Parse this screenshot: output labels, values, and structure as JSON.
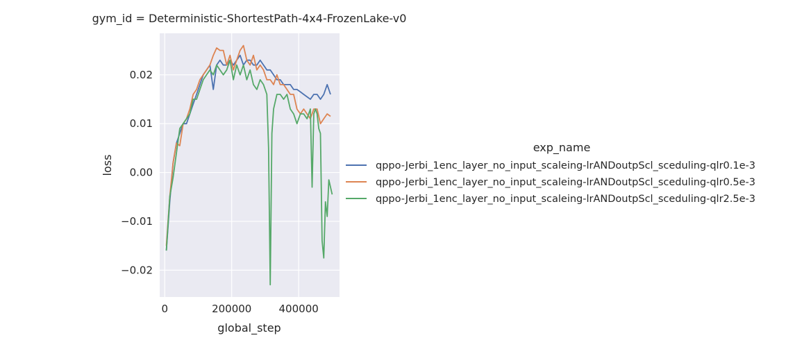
{
  "chart_data": {
    "type": "line",
    "title": "gym_id = Deterministic-ShortestPath-4x4-FrozenLake-v0",
    "xlabel": "global_step",
    "ylabel": "loss",
    "xlim": [
      -15000,
      522000
    ],
    "ylim": [
      -0.0255,
      0.0285
    ],
    "xticks": [
      0,
      200000,
      400000
    ],
    "xtick_labels": [
      "0",
      "200000",
      "400000"
    ],
    "yticks": [
      -0.02,
      -0.01,
      0.0,
      0.01,
      0.02
    ],
    "ytick_labels": [
      "−0.02",
      "−0.01",
      "0.00",
      "0.01",
      "0.02"
    ],
    "grid": true,
    "background": "#eaeaf2",
    "legend_title": "exp_name",
    "legend_position": "right",
    "series": [
      {
        "name": "qppo-Jerbi_1enc_layer_no_input_scaleing-lrANDoutpScl_sceduling-qlr0.1e-3",
        "color": "#4c72b0",
        "x": [
          5000,
          15000,
          25000,
          35000,
          45000,
          55000,
          65000,
          75000,
          85000,
          95000,
          105000,
          115000,
          125000,
          135000,
          145000,
          155000,
          165000,
          175000,
          185000,
          195000,
          205000,
          215000,
          225000,
          235000,
          245000,
          255000,
          265000,
          275000,
          285000,
          295000,
          305000,
          315000,
          325000,
          335000,
          345000,
          355000,
          365000,
          375000,
          385000,
          395000,
          405000,
          415000,
          425000,
          435000,
          445000,
          455000,
          465000,
          475000,
          485000,
          495000
        ],
        "y": [
          -0.016,
          -0.006,
          0.002,
          0.006,
          0.008,
          0.01,
          0.01,
          0.012,
          0.014,
          0.016,
          0.018,
          0.02,
          0.021,
          0.022,
          0.017,
          0.022,
          0.023,
          0.022,
          0.022,
          0.023,
          0.022,
          0.023,
          0.024,
          0.022,
          0.023,
          0.023,
          0.022,
          0.022,
          0.023,
          0.022,
          0.021,
          0.021,
          0.02,
          0.019,
          0.019,
          0.018,
          0.018,
          0.018,
          0.017,
          0.017,
          0.0165,
          0.016,
          0.0155,
          0.015,
          0.016,
          0.016,
          0.015,
          0.016,
          0.018,
          0.016
        ]
      },
      {
        "name": "qppo-Jerbi_1enc_layer_no_input_scaleing-lrANDoutpScl_sceduling-qlr0.5e-3",
        "color": "#dd8452",
        "x": [
          5000,
          15000,
          25000,
          35000,
          45000,
          55000,
          65000,
          75000,
          85000,
          95000,
          105000,
          115000,
          125000,
          135000,
          145000,
          155000,
          165000,
          175000,
          185000,
          195000,
          205000,
          215000,
          225000,
          235000,
          245000,
          255000,
          265000,
          275000,
          285000,
          295000,
          305000,
          315000,
          325000,
          335000,
          345000,
          355000,
          365000,
          375000,
          385000,
          395000,
          405000,
          415000,
          425000,
          435000,
          445000,
          455000,
          465000,
          475000,
          485000,
          495000
        ],
        "y": [
          -0.015,
          -0.005,
          0.002,
          0.006,
          0.0055,
          0.01,
          0.011,
          0.013,
          0.016,
          0.017,
          0.019,
          0.02,
          0.021,
          0.022,
          0.024,
          0.0255,
          0.025,
          0.025,
          0.022,
          0.024,
          0.021,
          0.023,
          0.025,
          0.026,
          0.023,
          0.022,
          0.024,
          0.021,
          0.022,
          0.021,
          0.019,
          0.019,
          0.018,
          0.02,
          0.018,
          0.018,
          0.017,
          0.016,
          0.016,
          0.013,
          0.012,
          0.013,
          0.012,
          0.011,
          0.013,
          0.013,
          0.01,
          0.011,
          0.012,
          0.0115
        ]
      },
      {
        "name": "qppo-Jerbi_1enc_layer_no_input_scaleing-lrANDoutpScl_sceduling-qlr2.5e-3",
        "color": "#55a868",
        "x": [
          5000,
          15000,
          25000,
          35000,
          45000,
          55000,
          65000,
          75000,
          85000,
          95000,
          105000,
          115000,
          125000,
          135000,
          145000,
          155000,
          165000,
          175000,
          185000,
          195000,
          205000,
          215000,
          225000,
          235000,
          245000,
          255000,
          265000,
          275000,
          285000,
          295000,
          305000,
          310000,
          315000,
          320000,
          325000,
          335000,
          345000,
          355000,
          365000,
          375000,
          385000,
          395000,
          405000,
          415000,
          425000,
          435000,
          440000,
          445000,
          450000,
          455000,
          460000,
          465000,
          470000,
          475000,
          480000,
          485000,
          490000,
          495000,
          500000
        ],
        "y": [
          -0.016,
          -0.005,
          -0.001,
          0.004,
          0.009,
          0.01,
          0.011,
          0.012,
          0.015,
          0.015,
          0.017,
          0.019,
          0.02,
          0.021,
          0.02,
          0.022,
          0.021,
          0.02,
          0.021,
          0.023,
          0.019,
          0.022,
          0.02,
          0.022,
          0.019,
          0.021,
          0.018,
          0.017,
          0.019,
          0.018,
          0.016,
          0.005,
          -0.023,
          0.008,
          0.013,
          0.016,
          0.016,
          0.015,
          0.016,
          0.013,
          0.012,
          0.01,
          0.012,
          0.012,
          0.011,
          0.013,
          -0.003,
          0.012,
          0.013,
          0.012,
          0.009,
          0.008,
          -0.014,
          -0.0175,
          -0.006,
          -0.009,
          -0.0015,
          -0.003,
          -0.0045
        ]
      }
    ]
  }
}
